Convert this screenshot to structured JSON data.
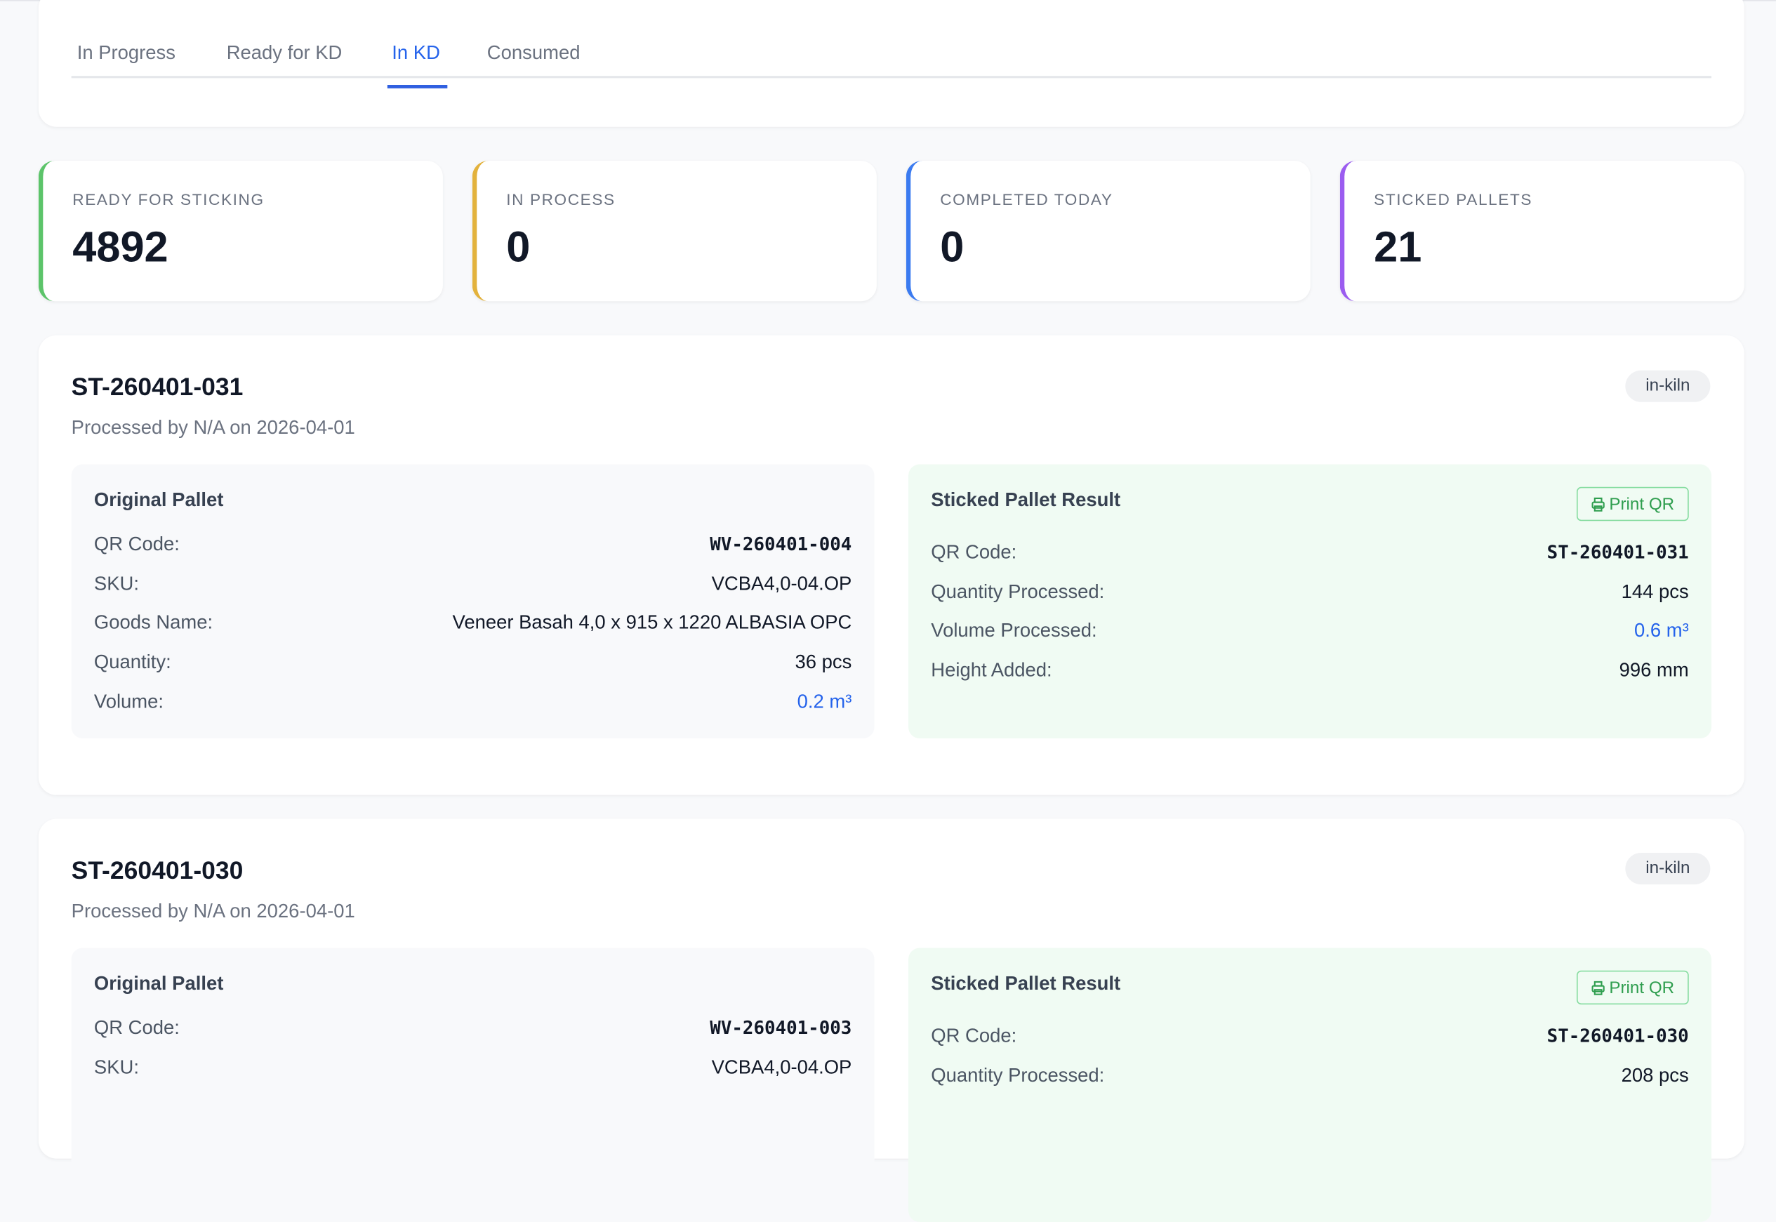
{
  "tabs": [
    {
      "label": "In Progress"
    },
    {
      "label": "Ready for KD"
    },
    {
      "label": "In KD",
      "active": true
    },
    {
      "label": "Consumed"
    }
  ],
  "stats": [
    {
      "label": "READY FOR STICKING",
      "value": "4892",
      "color": "#5cc46a"
    },
    {
      "label": "IN PROCESS",
      "value": "0",
      "color": "#e3b23c"
    },
    {
      "label": "COMPLETED TODAY",
      "value": "0",
      "color": "#3b7bf0"
    },
    {
      "label": "STICKED PALLETS",
      "value": "21",
      "color": "#9b5cf0"
    }
  ],
  "records": [
    {
      "id": "ST-260401-031",
      "subtitle": "Processed by N/A on 2026-04-01",
      "status": "in-kiln",
      "original": {
        "title": "Original Pallet",
        "rows": [
          {
            "k": "QR Code:",
            "v": "WV-260401-004"
          },
          {
            "k": "SKU:",
            "v": "VCBA4,0-04.OP"
          },
          {
            "k": "Goods Name:",
            "v": "Veneer Basah 4,0 x 915 x 1220 ALBASIA OPC"
          },
          {
            "k": "Quantity:",
            "v": "36 pcs"
          },
          {
            "k": "Volume:",
            "v": "0.2 m³"
          }
        ]
      },
      "result": {
        "title": "Sticked Pallet Result",
        "print_label": "Print QR",
        "rows": [
          {
            "k": "QR Code:",
            "v": "ST-260401-031"
          },
          {
            "k": "Quantity Processed:",
            "v": "144 pcs"
          },
          {
            "k": "Volume Processed:",
            "v": "0.6 m³"
          },
          {
            "k": "Height Added:",
            "v": "996 mm"
          }
        ]
      }
    },
    {
      "id": "ST-260401-030",
      "subtitle": "Processed by N/A on 2026-04-01",
      "status": "in-kiln",
      "original": {
        "title": "Original Pallet",
        "rows": [
          {
            "k": "QR Code:",
            "v": "WV-260401-003"
          },
          {
            "k": "SKU:",
            "v": "VCBA4,0-04.OP"
          }
        ]
      },
      "result": {
        "title": "Sticked Pallet Result",
        "print_label": "Print QR",
        "rows": [
          {
            "k": "QR Code:",
            "v": "ST-260401-030"
          },
          {
            "k": "Quantity Processed:",
            "v": "208 pcs"
          }
        ]
      }
    }
  ]
}
